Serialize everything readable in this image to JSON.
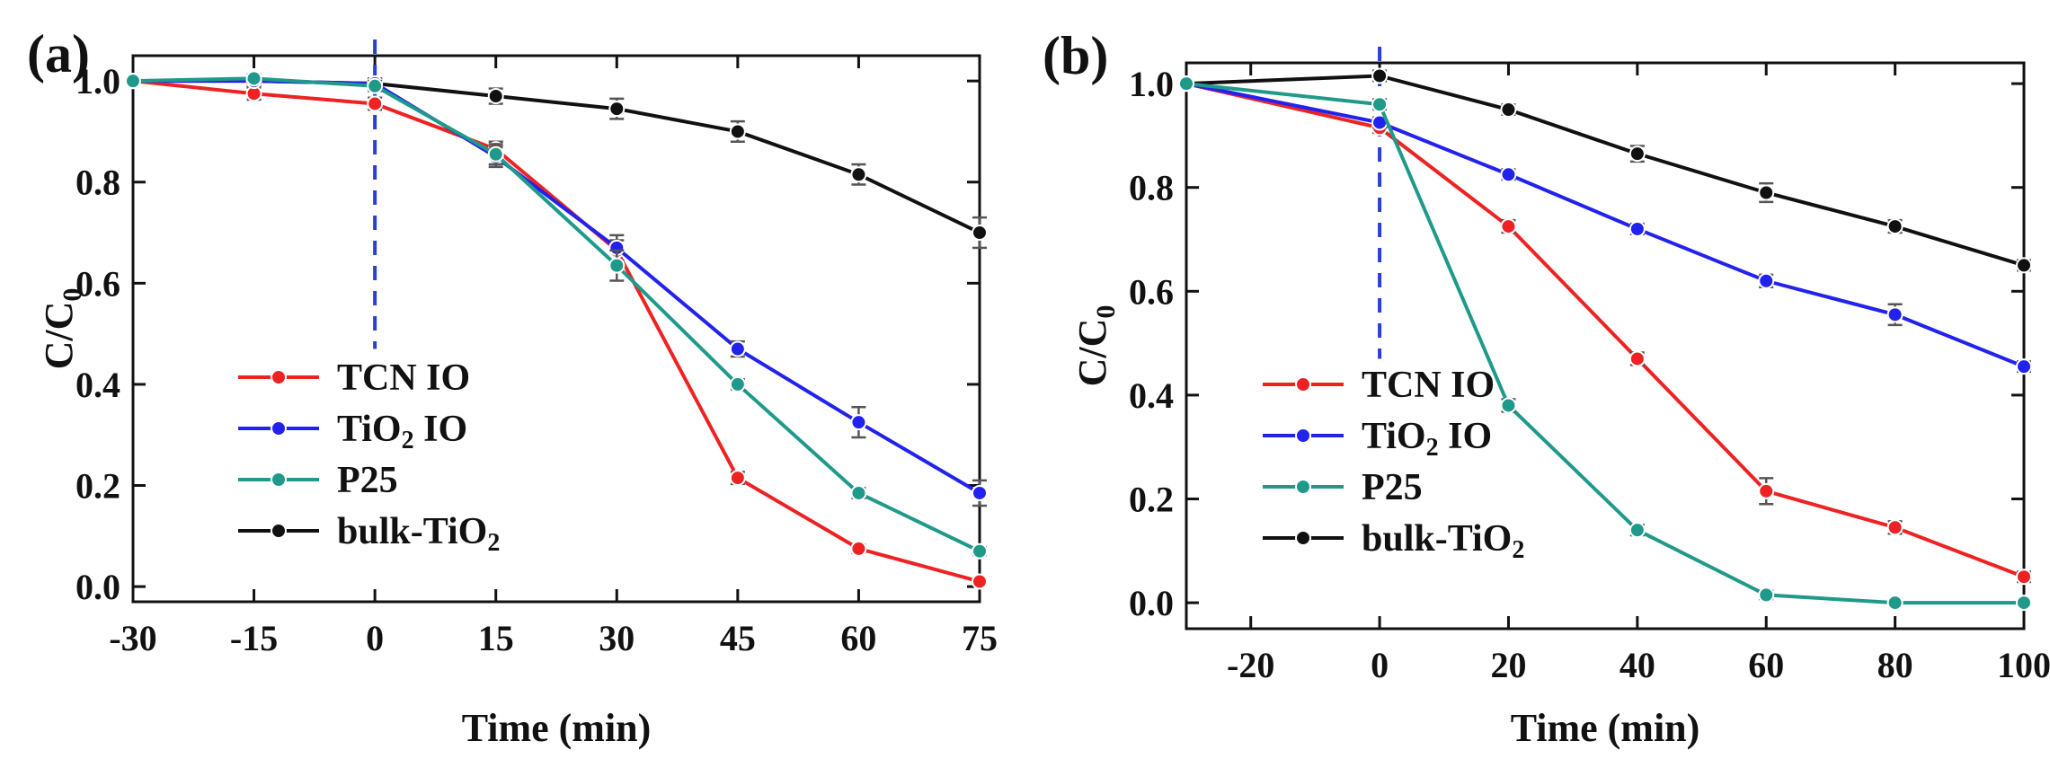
{
  "chart_data": [
    {
      "type": "line",
      "panel_label": "(a)",
      "xlabel": "Time (min)",
      "ylabel": "C/C",
      "ylabel_subscript": "0",
      "xlim": [
        -30,
        75
      ],
      "ylim": [
        -0.03,
        1.05
      ],
      "xticks": [
        -30,
        -15,
        0,
        15,
        30,
        45,
        60,
        75
      ],
      "xtick_labels": [
        "-30",
        "-15",
        "0",
        "15",
        "30",
        "45",
        "60",
        "75"
      ],
      "yticks": [
        0.0,
        0.2,
        0.4,
        0.6,
        0.8,
        1.0
      ],
      "ytick_labels": [
        "0.0",
        "0.2",
        "0.4",
        "0.6",
        "0.8",
        "1.0"
      ],
      "marker_x": 0,
      "legend_position": "bottom-left",
      "x": [
        -30,
        -15,
        0,
        15,
        30,
        45,
        60,
        75
      ],
      "series": [
        {
          "name": "TCN IO",
          "name_parts": [
            "TCN IO"
          ],
          "color": "#ee2222",
          "values": [
            1.0,
            0.975,
            0.955,
            0.865,
            0.665,
            0.215,
            0.075,
            0.01
          ],
          "errors": [
            0,
            0.012,
            0.012,
            0.015,
            0.02,
            0.012,
            0.008,
            0.006
          ]
        },
        {
          "name": "TiO2 IO",
          "name_parts": [
            "TiO",
            "2",
            " IO"
          ],
          "color": "#2222ee",
          "values": [
            1.0,
            1.0,
            0.995,
            0.85,
            0.67,
            0.47,
            0.325,
            0.185
          ],
          "errors": [
            0,
            0.01,
            0.01,
            0.02,
            0.025,
            0.015,
            0.03,
            0.025
          ]
        },
        {
          "name": "P25",
          "name_parts": [
            "P25"
          ],
          "color": "#1f9a8a",
          "values": [
            1.0,
            1.005,
            0.99,
            0.855,
            0.635,
            0.4,
            0.185,
            0.07
          ],
          "errors": [
            0,
            0.008,
            0.01,
            0.02,
            0.03,
            0.01,
            0.01,
            0.008
          ]
        },
        {
          "name": "bulk-TiO2",
          "name_parts": [
            "bulk-TiO",
            "2",
            ""
          ],
          "color": "#111111",
          "values": [
            1.0,
            1.0,
            0.995,
            0.97,
            0.945,
            0.9,
            0.815,
            0.7
          ],
          "errors": [
            0,
            0.008,
            0.01,
            0.015,
            0.02,
            0.02,
            0.02,
            0.03
          ]
        }
      ]
    },
    {
      "type": "line",
      "panel_label": "(b)",
      "xlabel": "Time (min)",
      "ylabel": "C/C",
      "ylabel_subscript": "0",
      "xlim": [
        -30,
        100
      ],
      "ylim": [
        -0.05,
        1.04
      ],
      "xticks": [
        -20,
        0,
        20,
        40,
        60,
        80,
        100
      ],
      "xtick_labels": [
        "-20",
        "0",
        "20",
        "40",
        "60",
        "80",
        "100"
      ],
      "yticks": [
        0.0,
        0.2,
        0.4,
        0.6,
        0.8,
        1.0
      ],
      "ytick_labels": [
        "0.0",
        "0.2",
        "0.4",
        "0.6",
        "0.8",
        "1.0"
      ],
      "marker_x": 0,
      "legend_position": "bottom-left",
      "x": [
        -30,
        0,
        20,
        40,
        60,
        80,
        100
      ],
      "series": [
        {
          "name": "TCN IO",
          "name_parts": [
            "TCN IO"
          ],
          "color": "#ee2222",
          "values": [
            1.0,
            0.915,
            0.725,
            0.47,
            0.215,
            0.145,
            0.05
          ],
          "errors": [
            0,
            0.01,
            0.012,
            0.012,
            0.025,
            0.012,
            0.01
          ]
        },
        {
          "name": "TiO2 IO",
          "name_parts": [
            "TiO",
            "2",
            " IO"
          ],
          "color": "#2222ee",
          "values": [
            1.0,
            0.925,
            0.825,
            0.72,
            0.62,
            0.555,
            0.455
          ],
          "errors": [
            0,
            0.01,
            0.01,
            0.01,
            0.012,
            0.02,
            0.01
          ]
        },
        {
          "name": "P25",
          "name_parts": [
            "P25"
          ],
          "color": "#1f9a8a",
          "values": [
            1.0,
            0.96,
            0.38,
            0.14,
            0.015,
            0.0,
            0.0
          ],
          "errors": [
            0,
            0.01,
            0.012,
            0.01,
            0.008,
            0.005,
            0.005
          ]
        },
        {
          "name": "bulk-TiO2",
          "name_parts": [
            "bulk-TiO",
            "2",
            ""
          ],
          "color": "#111111",
          "values": [
            1.0,
            1.015,
            0.95,
            0.865,
            0.79,
            0.725,
            0.65
          ],
          "errors": [
            0,
            0.01,
            0.01,
            0.015,
            0.018,
            0.012,
            0.01
          ]
        }
      ]
    }
  ]
}
